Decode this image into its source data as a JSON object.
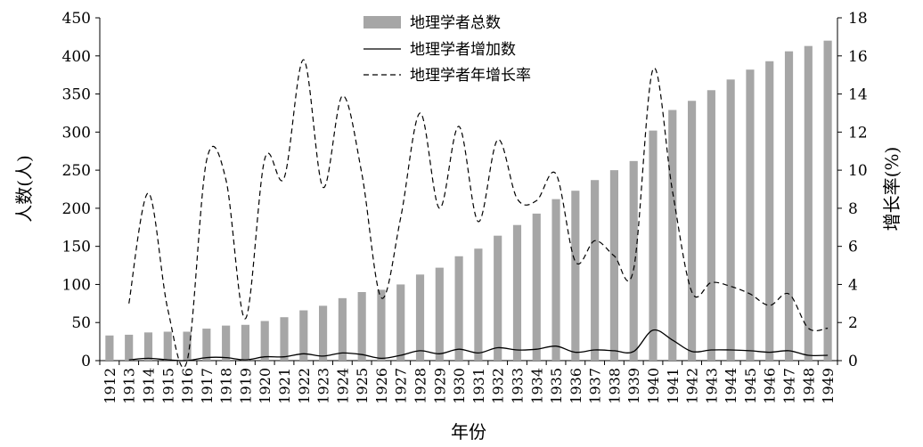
{
  "chart_data": {
    "type": "bar",
    "categories": [
      "1912",
      "1913",
      "1914",
      "1915",
      "1916",
      "1917",
      "1918",
      "1919",
      "1920",
      "1921",
      "1922",
      "1923",
      "1924",
      "1925",
      "1926",
      "1927",
      "1928",
      "1929",
      "1930",
      "1931",
      "1932",
      "1933",
      "1934",
      "1935",
      "1936",
      "1937",
      "1938",
      "1939",
      "1940",
      "1941",
      "1942",
      "1943",
      "1944",
      "1945",
      "1946",
      "1947",
      "1948",
      "1949"
    ],
    "xlabel": "年份",
    "ylabel": "人数(人)",
    "y2label": "增长率(%)",
    "ylim": [
      0,
      450
    ],
    "y2lim": [
      0,
      18
    ],
    "yticks": [
      0,
      50,
      100,
      150,
      200,
      250,
      300,
      350,
      400,
      450
    ],
    "y2ticks": [
      0,
      2,
      4,
      6,
      8,
      10,
      12,
      14,
      16,
      18
    ],
    "legend_position": "top-center",
    "series": [
      {
        "name": "地理学者总数",
        "type": "bar",
        "axis": "left",
        "color": "#a6a6a6",
        "values": [
          33,
          34,
          37,
          38,
          38,
          42,
          46,
          47,
          52,
          57,
          66,
          72,
          82,
          90,
          93,
          100,
          113,
          122,
          137,
          147,
          164,
          178,
          193,
          212,
          223,
          237,
          250,
          262,
          302,
          329,
          341,
          355,
          369,
          382,
          393,
          406,
          413,
          420
        ]
      },
      {
        "name": "地理学者增加数",
        "type": "line",
        "axis": "left",
        "color": "#000000",
        "values": [
          null,
          1,
          3,
          1,
          0,
          4,
          4,
          1,
          5,
          5,
          9,
          6,
          10,
          8,
          3,
          7,
          13,
          9,
          15,
          10,
          17,
          14,
          15,
          19,
          11,
          14,
          13,
          12,
          40,
          27,
          12,
          14,
          14,
          13,
          11,
          13,
          7,
          7
        ]
      },
      {
        "name": "地理学者年增长率",
        "type": "line",
        "dash": true,
        "axis": "right",
        "color": "#000000",
        "values": [
          null,
          3.0,
          8.8,
          2.7,
          0.0,
          10.5,
          9.5,
          2.2,
          10.6,
          9.6,
          15.8,
          9.1,
          13.9,
          9.8,
          3.3,
          7.5,
          13.0,
          8.0,
          12.3,
          7.3,
          11.6,
          8.5,
          8.4,
          9.8,
          5.2,
          6.3,
          5.5,
          4.8,
          15.3,
          8.9,
          3.6,
          4.1,
          3.9,
          3.5,
          2.9,
          3.5,
          1.7,
          1.7
        ]
      }
    ]
  }
}
